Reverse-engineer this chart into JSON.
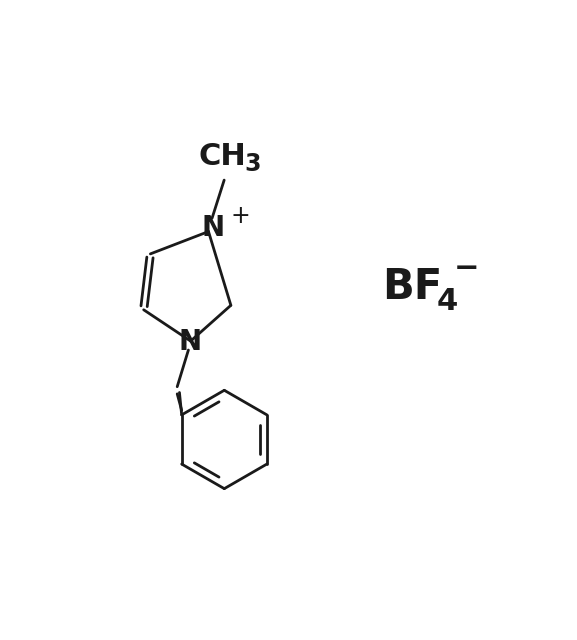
{
  "background_color": "#ffffff",
  "line_color": "#1a1a1a",
  "bond_width": 2.0,
  "fig_width": 5.77,
  "fig_height": 6.4,
  "dpi": 100,
  "font_size_N": 20,
  "font_size_plus": 15,
  "font_size_CH3_main": 20,
  "font_size_CH3_sub": 15,
  "font_size_BF4_main": 30,
  "font_size_BF4_sub": 22,
  "font_size_BF4_charge": 20,
  "xlim": [
    0,
    10
  ],
  "ylim": [
    0,
    11
  ]
}
